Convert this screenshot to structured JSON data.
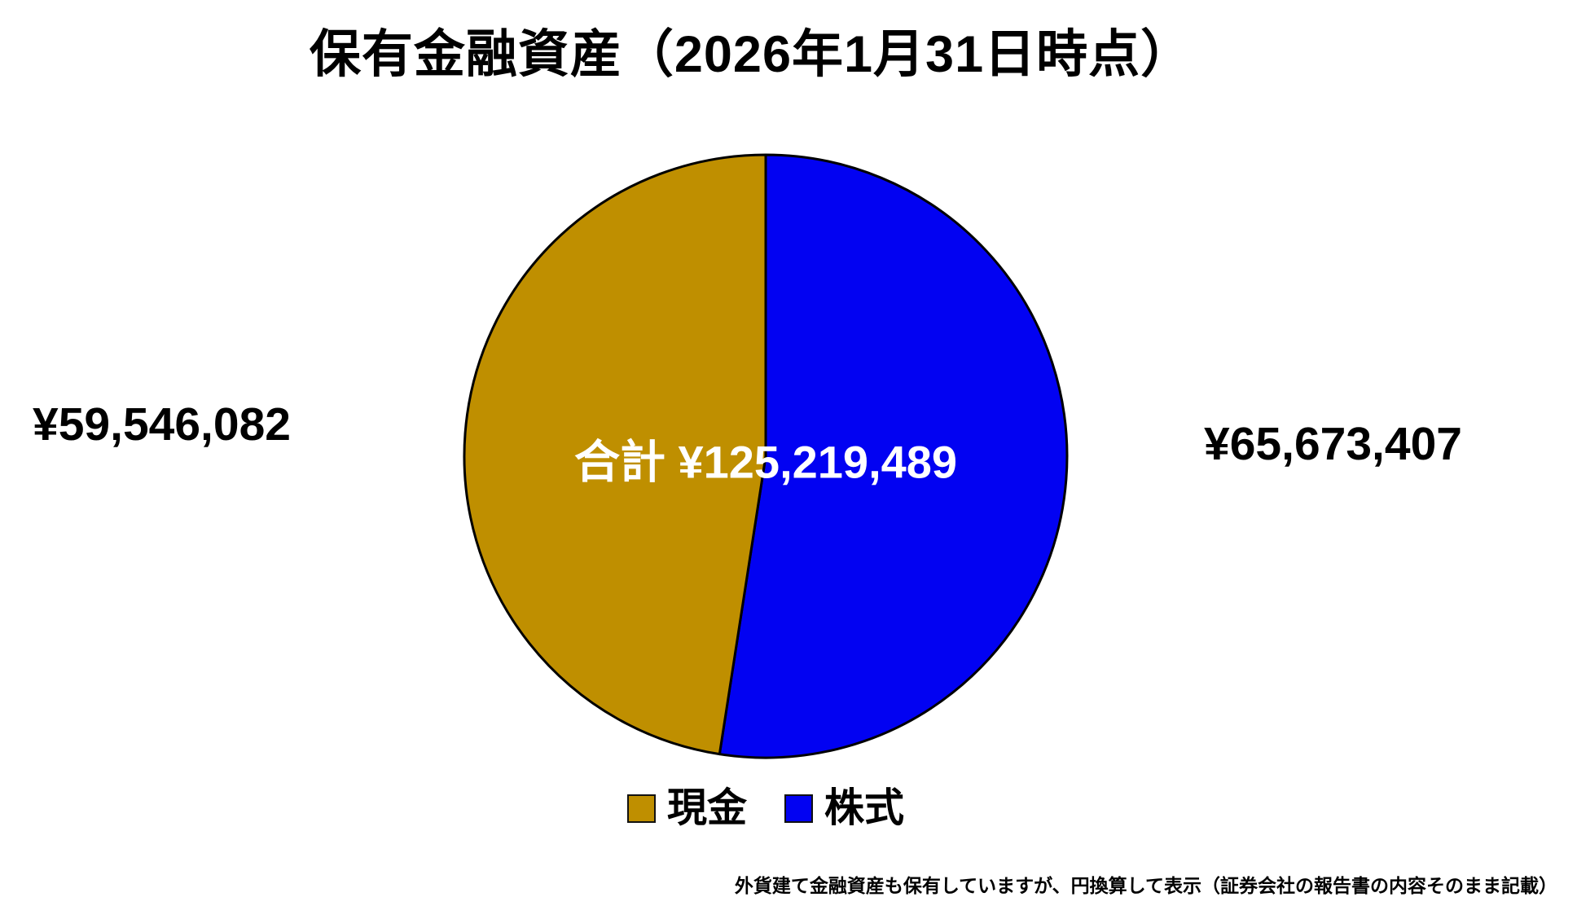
{
  "chart_data": {
    "type": "pie",
    "title": "保有金融資産（2026年1月31日時点）",
    "center_label": "合計 ¥125,219,489",
    "total": 125219489,
    "slices": [
      {
        "label": "現金",
        "value": 59546082,
        "display_value": "¥59,546,082",
        "color": "#BF8F00"
      },
      {
        "label": "株式",
        "value": 65673407,
        "display_value": "¥65,673,407",
        "color": "#0202F2"
      }
    ],
    "pie_sequence": [
      1,
      0
    ],
    "start_angle_deg": 0,
    "direction": "clockwise",
    "outline_color": "#000000",
    "outline_width": 3,
    "legend_position": "bottom",
    "footnote": "外貨建て金融資産も保有していますが、円換算して表示（証券会社の報告書の内容そのまま記載）"
  }
}
